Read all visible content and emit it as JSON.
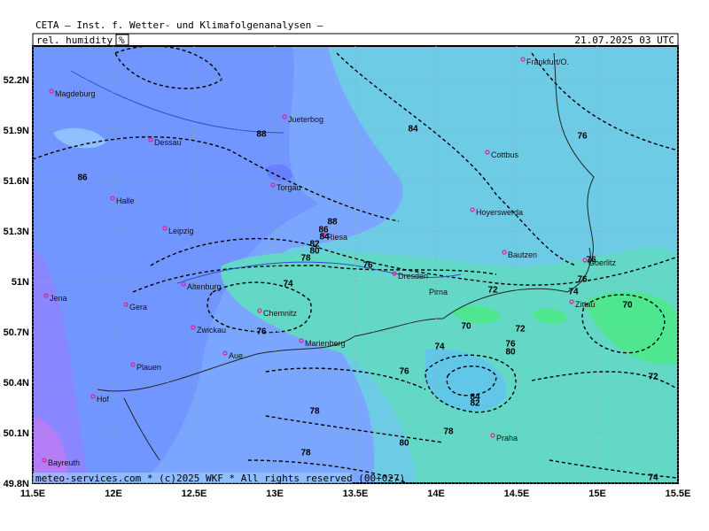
{
  "header": {
    "title": "CETA — Inst. f. Wetter- und Klimafolgenanalysen —",
    "parameter": "rel. humidity",
    "unit": "%",
    "valid_time": "21.07.2025 03 UTC"
  },
  "axes": {
    "x_labels": [
      "11.5E",
      "12E",
      "12.5E",
      "13E",
      "13.5E",
      "14E",
      "14.5E",
      "15E",
      "15.5E"
    ],
    "y_labels": [
      "52.2N",
      "51.9N",
      "51.6N",
      "51.3N",
      "51N",
      "50.7N",
      "50.4N",
      "50.1N",
      "49.8N"
    ]
  },
  "cities": [
    "Magdeburg",
    "Dessau",
    "Halle",
    "Leipzig",
    "Jena",
    "Gera",
    "Altenburg",
    "Zwickau",
    "Aue",
    "Plauen",
    "Hof",
    "Bayreuth",
    "Chemnitz",
    "Marienberg",
    "Jueterbog",
    "Torgau",
    "Riesa",
    "Dresden",
    "Pirna",
    "Hoyerswerda",
    "Cottbus",
    "Bautzen",
    "Goerlitz",
    "Zittau",
    "Frankfurt/O.",
    "Praha"
  ],
  "contour_labels": [
    "88",
    "84",
    "76",
    "86",
    "88",
    "86",
    "84",
    "82",
    "80",
    "78",
    "76",
    "74",
    "72",
    "76",
    "76",
    "74",
    "70",
    "70",
    "72",
    "76",
    "74",
    "76",
    "80",
    "76",
    "72",
    "84",
    "82",
    "78",
    "78",
    "80",
    "78",
    "74"
  ],
  "footer": "meteo-services.com  *  (c)2025 WKF  *  All rights reserved (00+027)"
}
